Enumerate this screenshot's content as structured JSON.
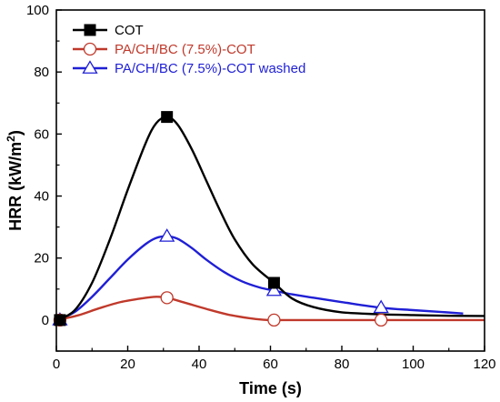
{
  "chart_data": {
    "type": "line",
    "xlabel": "Time (s)",
    "ylabel_main": "HRR (kW/m",
    "ylabel_sup": "2",
    "ylabel_end": ")",
    "xlim": [
      0,
      120
    ],
    "ylim": [
      -10,
      100
    ],
    "xticks": [
      0,
      20,
      40,
      60,
      80,
      100,
      120
    ],
    "yticks": [
      0,
      20,
      40,
      60,
      80,
      100
    ],
    "grid": false,
    "legend_position": "top-left",
    "series": [
      {
        "name": "COT",
        "color": "#000000",
        "marker": "filled-square",
        "curve": [
          [
            0,
            0
          ],
          [
            5,
            3
          ],
          [
            10,
            12
          ],
          [
            15,
            26
          ],
          [
            20,
            42
          ],
          [
            25,
            57
          ],
          [
            28,
            63.5
          ],
          [
            31,
            65.5
          ],
          [
            34,
            63
          ],
          [
            38,
            55
          ],
          [
            42,
            45
          ],
          [
            46,
            35
          ],
          [
            50,
            26
          ],
          [
            55,
            18
          ],
          [
            61,
            12
          ],
          [
            66,
            7
          ],
          [
            72,
            4.2
          ],
          [
            80,
            2.5
          ],
          [
            90,
            1.9
          ],
          [
            100,
            1.6
          ],
          [
            110,
            1.4
          ],
          [
            120,
            1.3
          ]
        ],
        "markers": [
          [
            1,
            0
          ],
          [
            31,
            65.5
          ],
          [
            61,
            12
          ]
        ]
      },
      {
        "name": "PA/CH/BC (7.5%)-COT",
        "color": "#c0392b",
        "marker": "open-circle",
        "curve": [
          [
            0,
            0
          ],
          [
            6,
            1.5
          ],
          [
            12,
            3.8
          ],
          [
            18,
            5.8
          ],
          [
            24,
            7
          ],
          [
            28,
            7.5
          ],
          [
            31,
            7.2
          ],
          [
            36,
            5.6
          ],
          [
            42,
            3.6
          ],
          [
            48,
            1.8
          ],
          [
            54,
            0.6
          ],
          [
            58,
            0.1
          ],
          [
            61,
            0
          ],
          [
            70,
            0
          ],
          [
            80,
            0
          ],
          [
            90,
            0
          ],
          [
            100,
            0
          ],
          [
            110,
            0
          ],
          [
            120,
            0
          ]
        ],
        "markers": [
          [
            1,
            0
          ],
          [
            31,
            7.2
          ],
          [
            61,
            0
          ],
          [
            91,
            0
          ]
        ]
      },
      {
        "name": "PA/CH/BC (7.5%)-COT washed",
        "color": "#1f1fd6",
        "marker": "open-triangle",
        "curve": [
          [
            0,
            0
          ],
          [
            5,
            2.5
          ],
          [
            10,
            7.5
          ],
          [
            15,
            13.5
          ],
          [
            20,
            19.5
          ],
          [
            25,
            24.5
          ],
          [
            28,
            26.5
          ],
          [
            31,
            27
          ],
          [
            34,
            26.2
          ],
          [
            38,
            23.2
          ],
          [
            42,
            19.5
          ],
          [
            47,
            15.5
          ],
          [
            52,
            12.5
          ],
          [
            57,
            10.5
          ],
          [
            61,
            9.5
          ],
          [
            66,
            8.3
          ],
          [
            72,
            7.2
          ],
          [
            80,
            5.8
          ],
          [
            91,
            4
          ],
          [
            100,
            3.2
          ],
          [
            108,
            2.6
          ],
          [
            114,
            2.1
          ]
        ],
        "markers": [
          [
            1,
            0
          ],
          [
            31,
            27
          ],
          [
            61,
            9.5
          ],
          [
            91,
            4
          ]
        ]
      }
    ]
  }
}
